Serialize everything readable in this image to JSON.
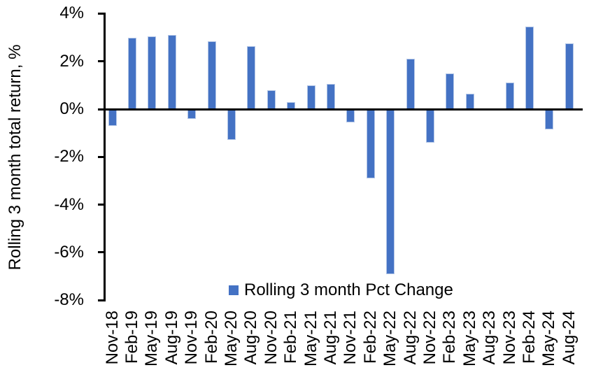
{
  "chart_data": {
    "type": "bar",
    "title": "",
    "xlabel": "",
    "ylabel": "Rolling 3 month total return, %",
    "ylim": [
      -8,
      4
    ],
    "grid": false,
    "yticks": {
      "values": [
        4,
        2,
        0,
        -2,
        -4,
        -6,
        -8
      ],
      "labels": [
        "4%",
        "2%",
        "0%",
        "-2%",
        "-4%",
        "-6%",
        "-8%"
      ]
    },
    "categories": [
      "Nov-18",
      "Feb-19",
      "May-19",
      "Aug-19",
      "Nov-19",
      "Feb-20",
      "May-20",
      "Aug-20",
      "Nov-20",
      "Feb-21",
      "May-21",
      "Aug-21",
      "Nov-21",
      "Feb-22",
      "May-22",
      "Aug-22",
      "Nov-22",
      "Feb-23",
      "May-23",
      "Aug-23",
      "Nov-23",
      "Feb-24",
      "May-24",
      "Aug-24"
    ],
    "series": [
      {
        "name": "Rolling 3 month Pct Change",
        "values": [
          -0.7,
          3.0,
          3.05,
          3.1,
          -0.4,
          2.85,
          -1.3,
          2.65,
          0.8,
          0.3,
          1.0,
          1.05,
          -0.55,
          -2.9,
          -6.9,
          2.1,
          -1.4,
          1.5,
          0.65,
          0.0,
          1.1,
          3.45,
          -0.85,
          2.75
        ]
      }
    ],
    "legend": {
      "position": "bottom-center",
      "entries": [
        "Rolling 3 month Pct Change"
      ]
    },
    "colors": {
      "bar_fill": "#4472C4",
      "bar_edge": "#B4C7E7",
      "axis": "#000000",
      "text": "#000000"
    }
  }
}
